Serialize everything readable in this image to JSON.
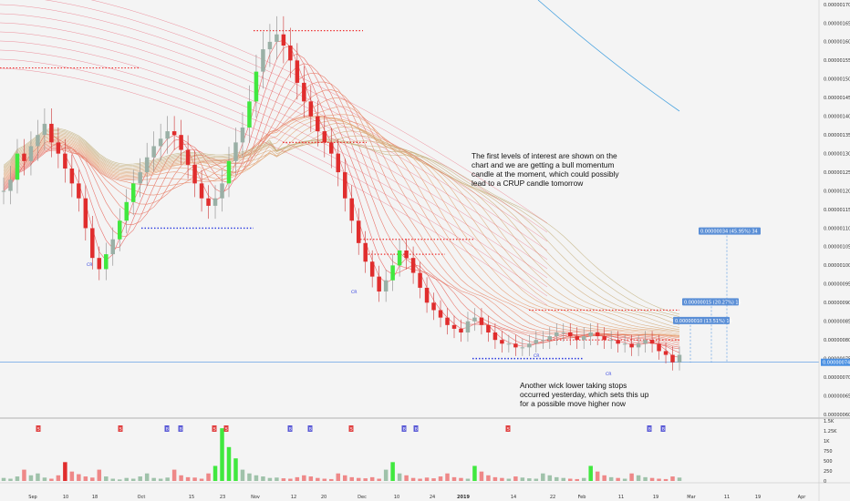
{
  "chart_data": {
    "type": "candlestick",
    "price_axis": {
      "ticks": [
        "0.00000170",
        "0.00000165",
        "0.00000160",
        "0.00000155",
        "0.00000150",
        "0.00000145",
        "0.00000140",
        "0.00000135",
        "0.00000130",
        "0.00000125",
        "0.00000120",
        "0.00000115",
        "0.00000110",
        "0.00000105",
        "0.00000100",
        "0.00000095",
        "0.00000090",
        "0.00000085",
        "0.00000080",
        "0.00000075",
        "0.00000070",
        "0.00000065",
        "0.00000060"
      ],
      "range": [
        6e-07,
        1.7e-06
      ],
      "current_price_label": "0.00000074",
      "current_price": 7.4e-07
    },
    "volume_axis": {
      "ticks": [
        "1.5K",
        "1.25K",
        "1K",
        "750",
        "500",
        "250",
        "0"
      ],
      "range": [
        0,
        1500
      ]
    },
    "x_axis": {
      "tick_labels": [
        "Sep",
        "10",
        "18",
        "Oct",
        "15",
        "23",
        "Nov",
        "12",
        "20",
        "Dec",
        "10",
        "24",
        "2019",
        "14",
        "22",
        "Feb",
        "11",
        "19",
        "Mar",
        "11",
        "19",
        "Apr"
      ]
    },
    "annotations": {
      "note_top": [
        "The first levels of interest are shown on the",
        "chart and we are getting a bull momentum",
        "candle at the moment, which could possibly",
        "lead to a CRUP candle tomorrow"
      ],
      "note_bottom": [
        "Another wick lower taking stops",
        "occurred yesterday, which sets this up",
        "for a possible move higher now"
      ],
      "targets": [
        {
          "label": "0.00000010 (13.51%) 10",
          "price": 8.4e-07
        },
        {
          "label": "0.00000015 (20.27%) 15",
          "price": 8.9e-07
        },
        {
          "label": "0.00000034 (45.95%) 34",
          "price": 1.08e-06
        }
      ],
      "cr_markers": [
        "CR",
        "CR",
        "CR",
        "CR"
      ],
      "buy_markers": [
        "B",
        "B",
        "B"
      ],
      "sell_markers": [
        "S",
        "S",
        "S"
      ],
      "resistance_levels": [
        1.63e-06,
        1.53e-06,
        1.33e-06,
        1.07e-06,
        1.03e-06,
        8.8e-07,
        8e-07
      ],
      "support_levels": [
        1.1e-06,
        7.5e-07
      ]
    },
    "series": [
      {
        "name": "price",
        "values": [
          1.2,
          1.23,
          1.3,
          1.28,
          1.32,
          1.35,
          1.38,
          1.33,
          1.3,
          1.26,
          1.22,
          1.18,
          1.1,
          1.02,
          0.99,
          1.03,
          1.07,
          1.12,
          1.17,
          1.22,
          1.25,
          1.29,
          1.32,
          1.34,
          1.36,
          1.35,
          1.31,
          1.27,
          1.22,
          1.18,
          1.16,
          1.18,
          1.22,
          1.28,
          1.33,
          1.37,
          1.44,
          1.52,
          1.58,
          1.6,
          1.62,
          1.59,
          1.55,
          1.49,
          1.44,
          1.4,
          1.36,
          1.33,
          1.3,
          1.25,
          1.18,
          1.12,
          1.06,
          1.01,
          0.97,
          0.93,
          0.96,
          1.0,
          1.04,
          1.02,
          0.98,
          0.94,
          0.9,
          0.88,
          0.86,
          0.84,
          0.83,
          0.82,
          0.85,
          0.86,
          0.84,
          0.82,
          0.8,
          0.79,
          0.79,
          0.78,
          0.78,
          0.79,
          0.8,
          0.8,
          0.81,
          0.82,
          0.82,
          0.81,
          0.8,
          0.81,
          0.82,
          0.81,
          0.8,
          0.8,
          0.79,
          0.79,
          0.78,
          0.79,
          0.8,
          0.79,
          0.77,
          0.76,
          0.74,
          0.76
        ]
      },
      {
        "name": "volume",
        "values": [
          80,
          60,
          120,
          300,
          150,
          200,
          90,
          60,
          150,
          500,
          250,
          180,
          120,
          90,
          300,
          120,
          60,
          40,
          80,
          60,
          120,
          200,
          80,
          60,
          90,
          300,
          150,
          100,
          90,
          60,
          200,
          400,
          1400,
          900,
          600,
          300,
          200,
          150,
          120,
          80,
          90,
          70,
          60,
          100,
          150,
          120,
          80,
          60,
          50,
          200,
          150,
          100,
          80,
          70,
          100,
          60,
          300,
          500,
          200,
          150,
          80,
          60,
          90,
          70,
          120,
          200,
          100,
          80,
          60,
          400,
          250,
          150,
          100,
          80,
          60,
          120,
          90,
          70,
          60,
          200,
          150,
          100,
          80,
          60,
          50,
          80,
          400,
          250,
          150,
          100,
          80,
          60,
          200,
          150,
          100,
          80,
          60,
          50,
          120,
          90
        ]
      }
    ]
  }
}
